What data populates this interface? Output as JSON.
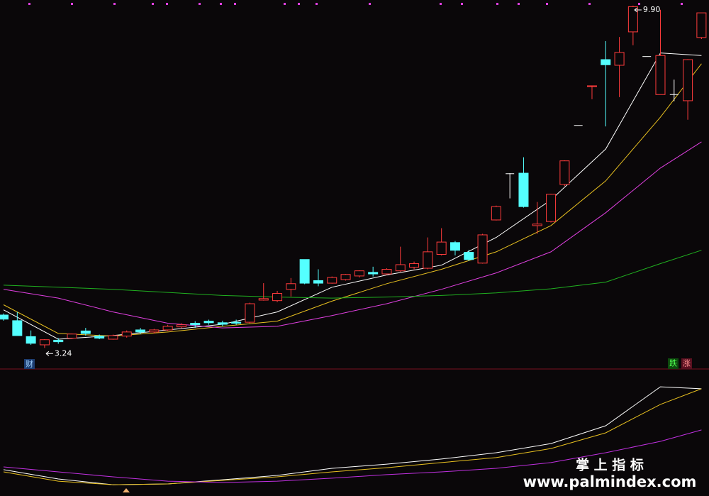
{
  "chart_data": [
    {
      "type": "candlestick",
      "xlim": [
        -0.26,
        51.55
      ],
      "ylim": [
        2.83,
        10.01
      ],
      "open": [
        3.88,
        3.77,
        3.46,
        3.3,
        3.39,
        3.43,
        3.57,
        3.47,
        3.41,
        3.47,
        3.59,
        3.55,
        3.59,
        3.65,
        3.72,
        3.76,
        3.73,
        3.74,
        3.74,
        4.17,
        4.16,
        4.38,
        4.96,
        4.55,
        4.5,
        4.57,
        4.64,
        4.71,
        4.68,
        4.74,
        4.81,
        4.79,
        5.06,
        5.29,
        5.1,
        4.89,
        5.73,
        6.63,
        6.64,
        5.62,
        5.7,
        6.42,
        7.57,
        8.33,
        8.85,
        8.74,
        9.39,
        8.91,
        8.17,
        8.17,
        8.05,
        9.28
      ],
      "high": [
        3.91,
        3.94,
        3.58,
        3.41,
        3.43,
        3.52,
        3.63,
        3.5,
        3.5,
        3.58,
        3.63,
        3.61,
        3.69,
        3.72,
        3.76,
        3.79,
        3.77,
        3.79,
        4.12,
        4.5,
        4.35,
        4.6,
        4.96,
        4.77,
        4.63,
        4.68,
        4.75,
        4.82,
        4.79,
        5.21,
        4.92,
        5.39,
        5.57,
        5.32,
        5.15,
        5.46,
        6.01,
        6.64,
        6.95,
        6.08,
        6.24,
        6.89,
        7.57,
        8.34,
        9.21,
        9.29,
        9.9,
        8.91,
        9.82,
        8.46,
        8.86,
        9.76
      ],
      "low": [
        3.77,
        3.48,
        3.3,
        3.24,
        3.32,
        3.41,
        3.48,
        3.41,
        3.4,
        3.44,
        3.51,
        3.52,
        3.57,
        3.62,
        3.63,
        3.69,
        3.66,
        3.69,
        3.72,
        4.16,
        4.13,
        4.24,
        4.48,
        4.44,
        4.49,
        4.55,
        4.61,
        4.63,
        4.66,
        4.72,
        4.77,
        4.77,
        5.04,
        5.04,
        4.93,
        4.88,
        5.72,
        6.15,
        5.97,
        5.46,
        5.68,
        6.39,
        7.57,
        8.08,
        7.55,
        8.12,
        9.13,
        8.91,
        8.17,
        8.04,
        7.68,
        9.25
      ],
      "close": [
        3.8,
        3.48,
        3.33,
        3.4,
        3.36,
        3.51,
        3.52,
        3.43,
        3.48,
        3.55,
        3.55,
        3.59,
        3.66,
        3.69,
        3.69,
        3.73,
        3.7,
        3.72,
        4.1,
        4.2,
        4.3,
        4.49,
        4.5,
        4.5,
        4.61,
        4.67,
        4.74,
        4.68,
        4.77,
        4.86,
        4.88,
        5.11,
        5.3,
        5.14,
        4.96,
        5.44,
        5.99,
        6.63,
        5.99,
        5.65,
        6.23,
        6.88,
        7.57,
        8.34,
        8.75,
        8.99,
        9.88,
        8.91,
        8.93,
        8.17,
        8.85,
        9.76
      ],
      "up_color": "#ff3c3c",
      "down_color": "#54ffff",
      "flat_color": "#ffffff",
      "lines": [
        {
          "color": "#ffffff",
          "x": [
            0,
            4,
            8,
            12,
            16,
            20,
            24,
            28,
            32,
            36,
            40,
            44,
            48,
            51
          ],
          "values": [
            3.98,
            3.41,
            3.48,
            3.59,
            3.7,
            3.94,
            4.42,
            4.66,
            4.85,
            5.39,
            6.12,
            7.11,
            8.98,
            8.93
          ]
        },
        {
          "color": "#e8c020",
          "x": [
            0,
            4,
            8,
            12,
            16,
            20,
            24,
            28,
            32,
            36,
            40,
            44,
            48,
            51
          ],
          "values": [
            4.08,
            3.52,
            3.47,
            3.55,
            3.66,
            3.76,
            4.15,
            4.49,
            4.77,
            5.11,
            5.62,
            6.49,
            7.73,
            8.77
          ]
        },
        {
          "color": "#e040e0",
          "x": [
            0,
            4,
            8,
            12,
            16,
            20,
            24,
            28,
            32,
            36,
            40,
            44,
            48,
            51
          ],
          "values": [
            4.38,
            4.21,
            3.94,
            3.72,
            3.63,
            3.66,
            3.87,
            4.1,
            4.38,
            4.7,
            5.11,
            5.87,
            6.74,
            7.25
          ]
        },
        {
          "color": "#20b020",
          "x": [
            0,
            4,
            8,
            12,
            16,
            20,
            24,
            28,
            32,
            36,
            40,
            44,
            48,
            51
          ],
          "values": [
            4.46,
            4.42,
            4.38,
            4.32,
            4.26,
            4.23,
            4.21,
            4.23,
            4.26,
            4.31,
            4.39,
            4.52,
            4.88,
            5.14
          ]
        }
      ],
      "annotations": [
        "9.90",
        "3.24"
      ]
    },
    {
      "type": "line",
      "xlim": [
        -0.26,
        51.55
      ],
      "ylim": [
        0,
        100
      ],
      "x": [
        0,
        4,
        8,
        12,
        16,
        20,
        24,
        28,
        32,
        36,
        40,
        44,
        48,
        51
      ],
      "series": [
        {
          "color": "#ffffff",
          "values": [
            20.7,
            13.4,
            8.9,
            9.5,
            12.8,
            16.2,
            21.8,
            25.1,
            29.1,
            34.1,
            41.3,
            55.3,
            86.0,
            84.4
          ]
        },
        {
          "color": "#e8c020",
          "values": [
            19.0,
            11.7,
            8.9,
            9.5,
            12.3,
            15.1,
            19.0,
            22.3,
            26.3,
            30.2,
            37.4,
            49.7,
            72.1,
            84.4
          ]
        },
        {
          "color": "#c030e0",
          "values": [
            22.9,
            19.0,
            15.1,
            11.7,
            10.6,
            11.7,
            14.0,
            16.8,
            19.0,
            21.8,
            26.3,
            34.1,
            43.0,
            52.0
          ]
        }
      ]
    }
  ],
  "badges": [
    "财",
    "跌",
    "涨"
  ],
  "watermark": {
    "title": "掌 上 指 标",
    "url": "www.palmindex.com"
  }
}
